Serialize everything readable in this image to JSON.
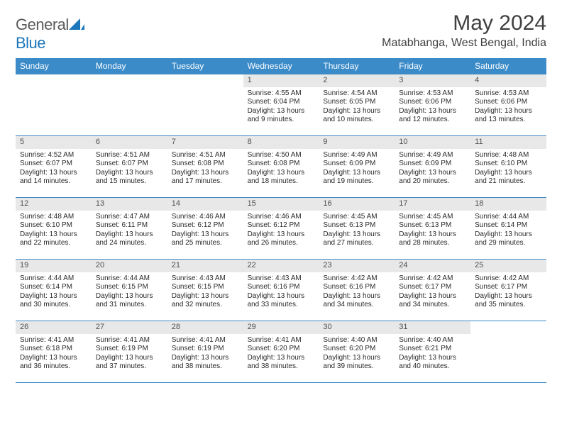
{
  "brand": {
    "text_gray": "General",
    "text_blue": "Blue"
  },
  "title": {
    "month_year": "May 2024",
    "location": "Matabhanga, West Bengal, India"
  },
  "colors": {
    "header_bg": "#3b8bc9",
    "daynum_bg": "#e8e8e8",
    "rule": "#3b8bc9"
  },
  "weekdays": [
    "Sunday",
    "Monday",
    "Tuesday",
    "Wednesday",
    "Thursday",
    "Friday",
    "Saturday"
  ],
  "weeks": [
    [
      {
        "num": "",
        "sunrise": "",
        "sunset": "",
        "daylight1": "",
        "daylight2": ""
      },
      {
        "num": "",
        "sunrise": "",
        "sunset": "",
        "daylight1": "",
        "daylight2": ""
      },
      {
        "num": "",
        "sunrise": "",
        "sunset": "",
        "daylight1": "",
        "daylight2": ""
      },
      {
        "num": "1",
        "sunrise": "Sunrise: 4:55 AM",
        "sunset": "Sunset: 6:04 PM",
        "daylight1": "Daylight: 13 hours",
        "daylight2": "and 9 minutes."
      },
      {
        "num": "2",
        "sunrise": "Sunrise: 4:54 AM",
        "sunset": "Sunset: 6:05 PM",
        "daylight1": "Daylight: 13 hours",
        "daylight2": "and 10 minutes."
      },
      {
        "num": "3",
        "sunrise": "Sunrise: 4:53 AM",
        "sunset": "Sunset: 6:06 PM",
        "daylight1": "Daylight: 13 hours",
        "daylight2": "and 12 minutes."
      },
      {
        "num": "4",
        "sunrise": "Sunrise: 4:53 AM",
        "sunset": "Sunset: 6:06 PM",
        "daylight1": "Daylight: 13 hours",
        "daylight2": "and 13 minutes."
      }
    ],
    [
      {
        "num": "5",
        "sunrise": "Sunrise: 4:52 AM",
        "sunset": "Sunset: 6:07 PM",
        "daylight1": "Daylight: 13 hours",
        "daylight2": "and 14 minutes."
      },
      {
        "num": "6",
        "sunrise": "Sunrise: 4:51 AM",
        "sunset": "Sunset: 6:07 PM",
        "daylight1": "Daylight: 13 hours",
        "daylight2": "and 15 minutes."
      },
      {
        "num": "7",
        "sunrise": "Sunrise: 4:51 AM",
        "sunset": "Sunset: 6:08 PM",
        "daylight1": "Daylight: 13 hours",
        "daylight2": "and 17 minutes."
      },
      {
        "num": "8",
        "sunrise": "Sunrise: 4:50 AM",
        "sunset": "Sunset: 6:08 PM",
        "daylight1": "Daylight: 13 hours",
        "daylight2": "and 18 minutes."
      },
      {
        "num": "9",
        "sunrise": "Sunrise: 4:49 AM",
        "sunset": "Sunset: 6:09 PM",
        "daylight1": "Daylight: 13 hours",
        "daylight2": "and 19 minutes."
      },
      {
        "num": "10",
        "sunrise": "Sunrise: 4:49 AM",
        "sunset": "Sunset: 6:09 PM",
        "daylight1": "Daylight: 13 hours",
        "daylight2": "and 20 minutes."
      },
      {
        "num": "11",
        "sunrise": "Sunrise: 4:48 AM",
        "sunset": "Sunset: 6:10 PM",
        "daylight1": "Daylight: 13 hours",
        "daylight2": "and 21 minutes."
      }
    ],
    [
      {
        "num": "12",
        "sunrise": "Sunrise: 4:48 AM",
        "sunset": "Sunset: 6:10 PM",
        "daylight1": "Daylight: 13 hours",
        "daylight2": "and 22 minutes."
      },
      {
        "num": "13",
        "sunrise": "Sunrise: 4:47 AM",
        "sunset": "Sunset: 6:11 PM",
        "daylight1": "Daylight: 13 hours",
        "daylight2": "and 24 minutes."
      },
      {
        "num": "14",
        "sunrise": "Sunrise: 4:46 AM",
        "sunset": "Sunset: 6:12 PM",
        "daylight1": "Daylight: 13 hours",
        "daylight2": "and 25 minutes."
      },
      {
        "num": "15",
        "sunrise": "Sunrise: 4:46 AM",
        "sunset": "Sunset: 6:12 PM",
        "daylight1": "Daylight: 13 hours",
        "daylight2": "and 26 minutes."
      },
      {
        "num": "16",
        "sunrise": "Sunrise: 4:45 AM",
        "sunset": "Sunset: 6:13 PM",
        "daylight1": "Daylight: 13 hours",
        "daylight2": "and 27 minutes."
      },
      {
        "num": "17",
        "sunrise": "Sunrise: 4:45 AM",
        "sunset": "Sunset: 6:13 PM",
        "daylight1": "Daylight: 13 hours",
        "daylight2": "and 28 minutes."
      },
      {
        "num": "18",
        "sunrise": "Sunrise: 4:44 AM",
        "sunset": "Sunset: 6:14 PM",
        "daylight1": "Daylight: 13 hours",
        "daylight2": "and 29 minutes."
      }
    ],
    [
      {
        "num": "19",
        "sunrise": "Sunrise: 4:44 AM",
        "sunset": "Sunset: 6:14 PM",
        "daylight1": "Daylight: 13 hours",
        "daylight2": "and 30 minutes."
      },
      {
        "num": "20",
        "sunrise": "Sunrise: 4:44 AM",
        "sunset": "Sunset: 6:15 PM",
        "daylight1": "Daylight: 13 hours",
        "daylight2": "and 31 minutes."
      },
      {
        "num": "21",
        "sunrise": "Sunrise: 4:43 AM",
        "sunset": "Sunset: 6:15 PM",
        "daylight1": "Daylight: 13 hours",
        "daylight2": "and 32 minutes."
      },
      {
        "num": "22",
        "sunrise": "Sunrise: 4:43 AM",
        "sunset": "Sunset: 6:16 PM",
        "daylight1": "Daylight: 13 hours",
        "daylight2": "and 33 minutes."
      },
      {
        "num": "23",
        "sunrise": "Sunrise: 4:42 AM",
        "sunset": "Sunset: 6:16 PM",
        "daylight1": "Daylight: 13 hours",
        "daylight2": "and 34 minutes."
      },
      {
        "num": "24",
        "sunrise": "Sunrise: 4:42 AM",
        "sunset": "Sunset: 6:17 PM",
        "daylight1": "Daylight: 13 hours",
        "daylight2": "and 34 minutes."
      },
      {
        "num": "25",
        "sunrise": "Sunrise: 4:42 AM",
        "sunset": "Sunset: 6:17 PM",
        "daylight1": "Daylight: 13 hours",
        "daylight2": "and 35 minutes."
      }
    ],
    [
      {
        "num": "26",
        "sunrise": "Sunrise: 4:41 AM",
        "sunset": "Sunset: 6:18 PM",
        "daylight1": "Daylight: 13 hours",
        "daylight2": "and 36 minutes."
      },
      {
        "num": "27",
        "sunrise": "Sunrise: 4:41 AM",
        "sunset": "Sunset: 6:19 PM",
        "daylight1": "Daylight: 13 hours",
        "daylight2": "and 37 minutes."
      },
      {
        "num": "28",
        "sunrise": "Sunrise: 4:41 AM",
        "sunset": "Sunset: 6:19 PM",
        "daylight1": "Daylight: 13 hours",
        "daylight2": "and 38 minutes."
      },
      {
        "num": "29",
        "sunrise": "Sunrise: 4:41 AM",
        "sunset": "Sunset: 6:20 PM",
        "daylight1": "Daylight: 13 hours",
        "daylight2": "and 38 minutes."
      },
      {
        "num": "30",
        "sunrise": "Sunrise: 4:40 AM",
        "sunset": "Sunset: 6:20 PM",
        "daylight1": "Daylight: 13 hours",
        "daylight2": "and 39 minutes."
      },
      {
        "num": "31",
        "sunrise": "Sunrise: 4:40 AM",
        "sunset": "Sunset: 6:21 PM",
        "daylight1": "Daylight: 13 hours",
        "daylight2": "and 40 minutes."
      },
      {
        "num": "",
        "sunrise": "",
        "sunset": "",
        "daylight1": "",
        "daylight2": ""
      }
    ]
  ]
}
